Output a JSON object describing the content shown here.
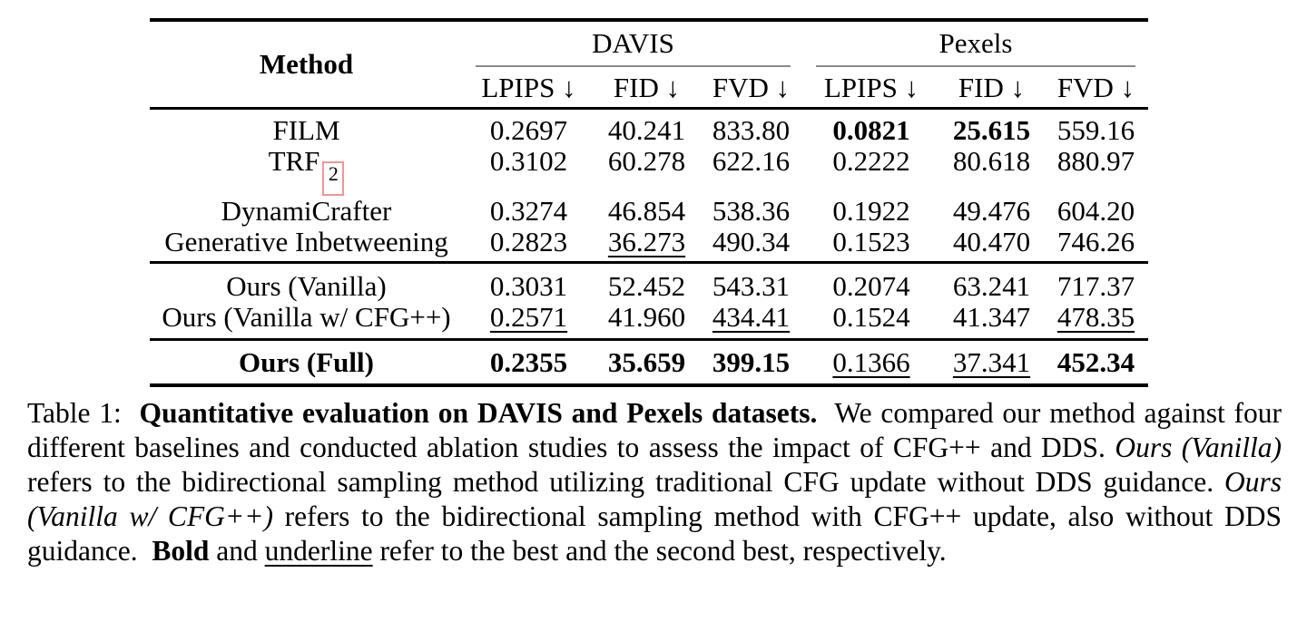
{
  "table": {
    "method_header": "Method",
    "groups": [
      {
        "label": "DAVIS"
      },
      {
        "label": "Pexels"
      }
    ],
    "subheaders": [
      "LPIPS ↓",
      "FID ↓",
      "FVD ↓",
      "LPIPS ↓",
      "FID ↓",
      "FVD ↓"
    ],
    "citation_box_color": "#f59494",
    "sections": [
      {
        "rows": [
          {
            "method": "FILM",
            "cells": [
              {
                "v": "0.2697"
              },
              {
                "v": "40.241"
              },
              {
                "v": "833.80"
              },
              {
                "v": "0.0821",
                "b": true
              },
              {
                "v": "25.615",
                "b": true
              },
              {
                "v": "559.16"
              }
            ]
          },
          {
            "method": "TRF",
            "cite": "2",
            "cells": [
              {
                "v": "0.3102"
              },
              {
                "v": "60.278"
              },
              {
                "v": "622.16"
              },
              {
                "v": "0.2222"
              },
              {
                "v": "80.618"
              },
              {
                "v": "880.97"
              }
            ]
          },
          {
            "method": "DynamiCrafter",
            "cells": [
              {
                "v": "0.3274"
              },
              {
                "v": "46.854"
              },
              {
                "v": "538.36"
              },
              {
                "v": "0.1922"
              },
              {
                "v": "49.476"
              },
              {
                "v": "604.20"
              }
            ]
          },
          {
            "method": "Generative Inbetweening",
            "cells": [
              {
                "v": "0.2823"
              },
              {
                "v": "36.273",
                "u": true
              },
              {
                "v": "490.34"
              },
              {
                "v": "0.1523"
              },
              {
                "v": "40.470"
              },
              {
                "v": "746.26"
              }
            ]
          }
        ]
      },
      {
        "rows": [
          {
            "method": "Ours (Vanilla)",
            "cells": [
              {
                "v": "0.3031"
              },
              {
                "v": "52.452"
              },
              {
                "v": "543.31"
              },
              {
                "v": "0.2074"
              },
              {
                "v": "63.241"
              },
              {
                "v": "717.37"
              }
            ]
          },
          {
            "method": "Ours (Vanilla w/ CFG++)",
            "cells": [
              {
                "v": "0.2571",
                "u": true
              },
              {
                "v": "41.960"
              },
              {
                "v": "434.41",
                "u": true
              },
              {
                "v": "0.1524"
              },
              {
                "v": "41.347"
              },
              {
                "v": "478.35",
                "u": true
              }
            ]
          }
        ]
      },
      {
        "rows": [
          {
            "method": "Ours (Full)",
            "method_bold": true,
            "cells": [
              {
                "v": "0.2355",
                "b": true
              },
              {
                "v": "35.659",
                "b": true
              },
              {
                "v": "399.15",
                "b": true
              },
              {
                "v": "0.1366",
                "u": true
              },
              {
                "v": "37.341",
                "u": true
              },
              {
                "v": "452.34",
                "b": true
              }
            ]
          }
        ]
      }
    ]
  },
  "caption": {
    "segments": [
      {
        "text": "Table 1:  "
      },
      {
        "text": "Quantitative evaluation on DAVIS and Pexels datasets.",
        "bold": true
      },
      {
        "text": "  We compared our method against four different baselines and conducted ablation studies to assess the impact of CFG++ and DDS. "
      },
      {
        "text": "Ours (Vanilla)",
        "italic": true
      },
      {
        "text": " refers to the bidirectional sampling method utilizing traditional CFG update without DDS guidance. "
      },
      {
        "text": "Ours (Vanilla w/ CFG++)",
        "italic": true
      },
      {
        "text": " refers to the bidirectional sampling method with CFG++ update, also without DDS guidance.  "
      },
      {
        "text": "Bold",
        "bold": true
      },
      {
        "text": " and "
      },
      {
        "text": "underline",
        "underline": true
      },
      {
        "text": " refer to the best and the second best, respectively."
      }
    ]
  }
}
